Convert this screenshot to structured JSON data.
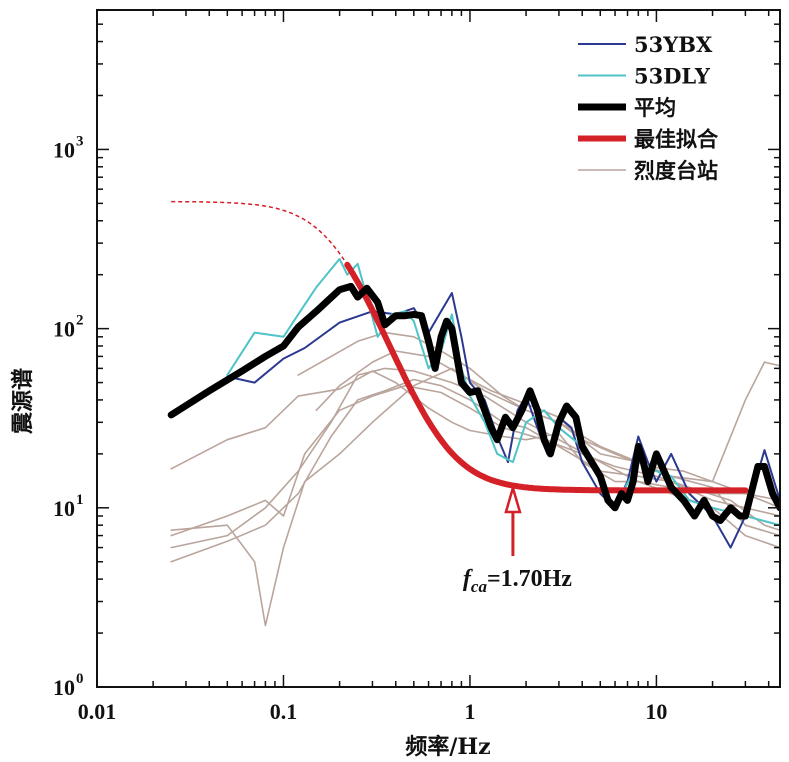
{
  "chart_data": {
    "type": "line",
    "x_scale": "log",
    "y_scale": "log",
    "xlim": [
      0.01,
      46
    ],
    "ylim": [
      1,
      6000
    ],
    "xlabel": "频率/Hz",
    "ylabel": "震源谱",
    "x_ticks": [
      {
        "value": 0.01,
        "label": "0.01"
      },
      {
        "value": 0.1,
        "label": "0.1"
      },
      {
        "value": 1,
        "label": "1"
      },
      {
        "value": 10,
        "label": "10"
      }
    ],
    "y_ticks": [
      {
        "value": 1,
        "base": "10",
        "exp": "0"
      },
      {
        "value": 10,
        "base": "10",
        "exp": "1"
      },
      {
        "value": 100,
        "base": "10",
        "exp": "2"
      },
      {
        "value": 1000,
        "base": "10",
        "exp": "3"
      }
    ],
    "legend_position": "top-right",
    "annotation": {
      "x": 1.7,
      "label_main": "f",
      "label_sub": "ca",
      "label_rest": "=1.70Hz",
      "color": "#d42027"
    },
    "series": [
      {
        "name": "烈度台站",
        "color": "#b9a59c",
        "width": 1.6,
        "legend": true,
        "points": [
          [
            0.025,
            16.5
          ],
          [
            0.05,
            24
          ],
          [
            0.08,
            28
          ],
          [
            0.12,
            42
          ],
          [
            0.2,
            46
          ],
          [
            0.3,
            58
          ],
          [
            0.4,
            50
          ],
          [
            0.6,
            36
          ],
          [
            0.8,
            30
          ],
          [
            1,
            27
          ],
          [
            1.5,
            25
          ],
          [
            2,
            24
          ],
          [
            3,
            26
          ],
          [
            4,
            18
          ],
          [
            6,
            14
          ],
          [
            8,
            14
          ],
          [
            12,
            13
          ],
          [
            20,
            12
          ],
          [
            30,
            12
          ],
          [
            46,
            10
          ]
        ]
      },
      {
        "name": "",
        "color": "#b9a59c",
        "width": 1.6,
        "legend": false,
        "points": [
          [
            0.025,
            5
          ],
          [
            0.05,
            6.5
          ],
          [
            0.08,
            8
          ],
          [
            0.12,
            12
          ],
          [
            0.18,
            25
          ],
          [
            0.25,
            40
          ],
          [
            0.35,
            45
          ],
          [
            0.5,
            52
          ],
          [
            0.7,
            48
          ],
          [
            1,
            40
          ],
          [
            1.5,
            30
          ],
          [
            2,
            28
          ],
          [
            3,
            22
          ],
          [
            5,
            16
          ],
          [
            8,
            15
          ],
          [
            12,
            14
          ],
          [
            20,
            11
          ],
          [
            30,
            10
          ],
          [
            46,
            9
          ]
        ]
      },
      {
        "name": "",
        "color": "#b9a59c",
        "width": 1.6,
        "legend": false,
        "points": [
          [
            0.025,
            7.5
          ],
          [
            0.05,
            8
          ],
          [
            0.07,
            5
          ],
          [
            0.08,
            2.2
          ],
          [
            0.1,
            6
          ],
          [
            0.13,
            14
          ],
          [
            0.2,
            20
          ],
          [
            0.3,
            30
          ],
          [
            0.5,
            48
          ],
          [
            0.8,
            60
          ],
          [
            1.2,
            45
          ],
          [
            2,
            35
          ],
          [
            3,
            30
          ],
          [
            5,
            20
          ],
          [
            8,
            18
          ],
          [
            12,
            15
          ],
          [
            20,
            13
          ],
          [
            30,
            8
          ],
          [
            46,
            7
          ]
        ]
      },
      {
        "name": "",
        "color": "#b9a59c",
        "width": 1.6,
        "legend": false,
        "points": [
          [
            0.025,
            6
          ],
          [
            0.05,
            7
          ],
          [
            0.08,
            10
          ],
          [
            0.12,
            16
          ],
          [
            0.18,
            30
          ],
          [
            0.25,
            55
          ],
          [
            0.35,
            60
          ],
          [
            0.5,
            58
          ],
          [
            0.8,
            50
          ],
          [
            1.2,
            42
          ],
          [
            2,
            30
          ],
          [
            3,
            24
          ],
          [
            5,
            18
          ],
          [
            8,
            14
          ],
          [
            12,
            12
          ],
          [
            20,
            10
          ],
          [
            30,
            7
          ],
          [
            46,
            6
          ]
        ]
      },
      {
        "name": "",
        "color": "#b9a59c",
        "width": 1.6,
        "legend": false,
        "points": [
          [
            0.025,
            7
          ],
          [
            0.05,
            9
          ],
          [
            0.08,
            11
          ],
          [
            0.1,
            9
          ],
          [
            0.13,
            20
          ],
          [
            0.2,
            35
          ],
          [
            0.3,
            42
          ],
          [
            0.45,
            48
          ],
          [
            0.7,
            44
          ],
          [
            1,
            36
          ],
          [
            1.5,
            28
          ],
          [
            2.5,
            24
          ],
          [
            4,
            20
          ],
          [
            6,
            17
          ],
          [
            10,
            15
          ],
          [
            15,
            13
          ],
          [
            25,
            11
          ],
          [
            38,
            8
          ],
          [
            46,
            7.5
          ]
        ]
      },
      {
        "name": "",
        "color": "#b9a59c",
        "width": 1.6,
        "legend": false,
        "points": [
          [
            0.12,
            55
          ],
          [
            0.18,
            70
          ],
          [
            0.25,
            85
          ],
          [
            0.35,
            95
          ],
          [
            0.5,
            90
          ],
          [
            0.7,
            75
          ],
          [
            1,
            60
          ],
          [
            1.5,
            42
          ],
          [
            2,
            35
          ],
          [
            3,
            30
          ],
          [
            5,
            22
          ],
          [
            8,
            18
          ],
          [
            12,
            15
          ],
          [
            20,
            14
          ],
          [
            30,
            40
          ],
          [
            38,
            65
          ],
          [
            46,
            62
          ]
        ]
      },
      {
        "name": "",
        "color": "#b9a59c",
        "width": 1.6,
        "legend": false,
        "points": [
          [
            0.15,
            35
          ],
          [
            0.2,
            48
          ],
          [
            0.3,
            65
          ],
          [
            0.4,
            75
          ],
          [
            0.6,
            70
          ],
          [
            0.9,
            55
          ],
          [
            1.3,
            45
          ],
          [
            2,
            38
          ],
          [
            3,
            32
          ],
          [
            4,
            24
          ],
          [
            6,
            20
          ],
          [
            9,
            17
          ],
          [
            14,
            16
          ],
          [
            20,
            14
          ],
          [
            30,
            12
          ],
          [
            46,
            11
          ]
        ]
      },
      {
        "name": "53YBX",
        "color": "#2b3990",
        "width": 2,
        "legend": true,
        "points": [
          [
            0.05,
            54
          ],
          [
            0.07,
            50
          ],
          [
            0.1,
            68
          ],
          [
            0.13,
            78
          ],
          [
            0.2,
            108
          ],
          [
            0.3,
            125
          ],
          [
            0.4,
            120
          ],
          [
            0.5,
            130
          ],
          [
            0.6,
            95
          ],
          [
            0.7,
            125
          ],
          [
            0.8,
            158
          ],
          [
            0.9,
            90
          ],
          [
            1,
            50
          ],
          [
            1.2,
            40
          ],
          [
            1.4,
            25
          ],
          [
            1.6,
            18
          ],
          [
            1.8,
            35
          ],
          [
            2,
            42
          ],
          [
            2.3,
            28
          ],
          [
            2.6,
            20
          ],
          [
            3,
            32
          ],
          [
            3.5,
            28
          ],
          [
            4,
            18
          ],
          [
            5,
            12
          ],
          [
            6,
            10
          ],
          [
            7,
            14
          ],
          [
            8,
            25
          ],
          [
            9,
            18
          ],
          [
            10,
            14
          ],
          [
            12,
            20
          ],
          [
            15,
            12
          ],
          [
            20,
            9
          ],
          [
            25,
            6
          ],
          [
            30,
            9
          ],
          [
            38,
            21
          ],
          [
            46,
            11
          ]
        ]
      },
      {
        "name": "53DLY",
        "color": "#4fc3c7",
        "width": 2,
        "legend": true,
        "points": [
          [
            0.05,
            55
          ],
          [
            0.07,
            95
          ],
          [
            0.1,
            90
          ],
          [
            0.12,
            120
          ],
          [
            0.15,
            170
          ],
          [
            0.2,
            245
          ],
          [
            0.22,
            200
          ],
          [
            0.25,
            230
          ],
          [
            0.28,
            150
          ],
          [
            0.32,
            90
          ],
          [
            0.38,
            120
          ],
          [
            0.45,
            125
          ],
          [
            0.5,
            110
          ],
          [
            0.6,
            60
          ],
          [
            0.7,
            75
          ],
          [
            0.8,
            120
          ],
          [
            0.9,
            60
          ],
          [
            1,
            42
          ],
          [
            1.2,
            30
          ],
          [
            1.4,
            20
          ],
          [
            1.7,
            18
          ],
          [
            2,
            30
          ],
          [
            2.5,
            35
          ],
          [
            3,
            28
          ],
          [
            4,
            22
          ],
          [
            5,
            14
          ],
          [
            6,
            10
          ],
          [
            8,
            18
          ],
          [
            10,
            16
          ],
          [
            12,
            15
          ],
          [
            15,
            11
          ],
          [
            20,
            10
          ],
          [
            30,
            9
          ],
          [
            46,
            8
          ]
        ]
      },
      {
        "name": "平均",
        "color": "#000000",
        "width": 7,
        "legend": true,
        "points": [
          [
            0.025,
            33
          ],
          [
            0.04,
            45
          ],
          [
            0.06,
            58
          ],
          [
            0.08,
            70
          ],
          [
            0.1,
            80
          ],
          [
            0.12,
            102
          ],
          [
            0.15,
            125
          ],
          [
            0.2,
            165
          ],
          [
            0.23,
            172
          ],
          [
            0.25,
            150
          ],
          [
            0.28,
            168
          ],
          [
            0.32,
            140
          ],
          [
            0.35,
            105
          ],
          [
            0.4,
            118
          ],
          [
            0.45,
            118
          ],
          [
            0.5,
            120
          ],
          [
            0.55,
            118
          ],
          [
            0.6,
            85
          ],
          [
            0.65,
            60
          ],
          [
            0.7,
            90
          ],
          [
            0.75,
            110
          ],
          [
            0.8,
            100
          ],
          [
            0.85,
            70
          ],
          [
            0.9,
            50
          ],
          [
            1,
            44
          ],
          [
            1.1,
            45
          ],
          [
            1.2,
            35
          ],
          [
            1.3,
            28
          ],
          [
            1.4,
            24
          ],
          [
            1.55,
            32
          ],
          [
            1.7,
            28
          ],
          [
            1.9,
            35
          ],
          [
            2.1,
            45
          ],
          [
            2.3,
            35
          ],
          [
            2.5,
            24
          ],
          [
            2.7,
            20
          ],
          [
            3,
            30
          ],
          [
            3.3,
            37
          ],
          [
            3.7,
            32
          ],
          [
            4,
            22
          ],
          [
            4.5,
            18
          ],
          [
            5,
            15
          ],
          [
            5.5,
            11
          ],
          [
            6,
            10
          ],
          [
            6.5,
            12
          ],
          [
            7,
            11
          ],
          [
            7.5,
            14
          ],
          [
            8,
            22
          ],
          [
            8.5,
            18
          ],
          [
            9,
            14
          ],
          [
            10,
            20
          ],
          [
            11,
            16
          ],
          [
            12,
            13
          ],
          [
            14,
            11
          ],
          [
            16,
            9
          ],
          [
            18,
            11
          ],
          [
            20,
            9
          ],
          [
            22,
            8.5
          ],
          [
            25,
            10
          ],
          [
            28,
            9
          ],
          [
            30,
            9
          ],
          [
            35,
            17
          ],
          [
            38,
            17
          ],
          [
            42,
            12
          ],
          [
            46,
            10
          ]
        ]
      },
      {
        "name": "最佳拟合",
        "color": "#d42027",
        "width": 6,
        "legend": true,
        "model": {
          "omega0": 500,
          "fc": 0.2,
          "n": 1.5,
          "floor": 12.5
        },
        "x_range": [
          0.22,
          30
        ],
        "dashed_x_range": [
          0.025,
          0.22
        ]
      }
    ]
  }
}
